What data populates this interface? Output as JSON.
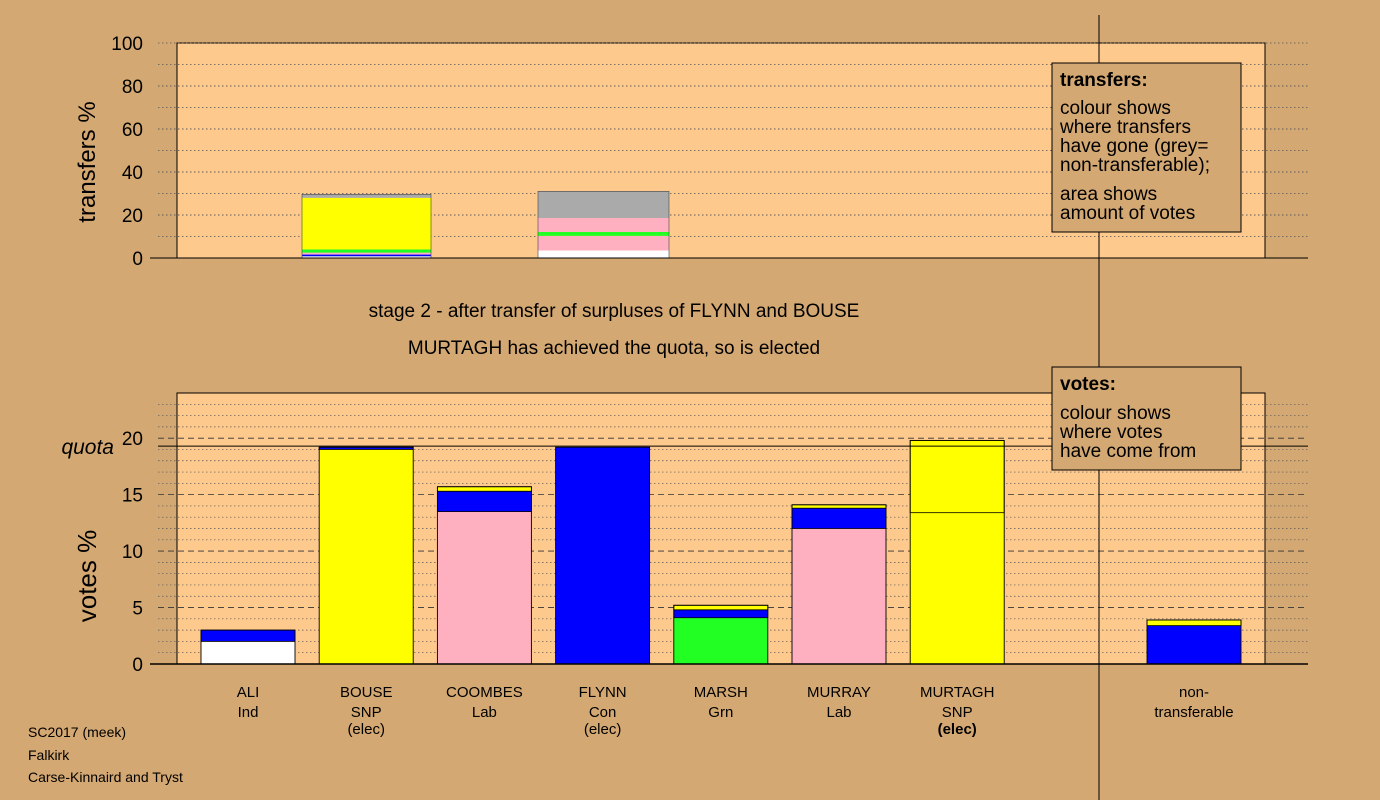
{
  "caption": {
    "stage_line": "stage 2 - after transfer of surpluses of FLYNN and BOUSE",
    "elected_line": "MURTAGH has achieved the quota, so is elected"
  },
  "footer": {
    "line1": "SC2017 (meek)",
    "line2": "Falkirk",
    "line3": "Carse-Kinnaird and Tryst"
  },
  "transfers_box": {
    "title": "transfers:",
    "lines": [
      "colour shows",
      "where transfers",
      "have gone (grey=",
      "non-transferable);",
      "area shows",
      "amount of votes"
    ]
  },
  "votes_box": {
    "title": "votes:",
    "lines": [
      "colour shows",
      "where votes",
      "have come from"
    ]
  },
  "colors": {
    "background": "#d4a872",
    "plot_area": "#fec98d",
    "Con": "#0000ff",
    "SNP": "#ffff00",
    "Lab": "#ffb0c0",
    "Grn": "#22ff22",
    "Ind": "#ffffff",
    "non_transferable": "#aaaaaa"
  },
  "chart_data": [
    {
      "type": "bar",
      "stacked": true,
      "ylabel": "transfers %",
      "ylim": [
        0,
        100
      ],
      "yticks": [
        0,
        20,
        40,
        60,
        80,
        100
      ],
      "grid": true,
      "categories": [
        "BOUSE",
        "FLYNN"
      ],
      "segments": [
        {
          "bar": "BOUSE",
          "stack": [
            {
              "color": "Ind",
              "value": 0.8
            },
            {
              "color": "Con",
              "value": 0.8
            },
            {
              "color": "Lab",
              "value": 0.9
            },
            {
              "color": "Grn",
              "value": 1.5
            },
            {
              "color": "SNP",
              "value": 24.0
            },
            {
              "color": "non_transferable",
              "value": 1.6
            }
          ]
        },
        {
          "bar": "FLYNN",
          "stack": [
            {
              "color": "Ind",
              "value": 3.5
            },
            {
              "color": "Lab",
              "value": 6.8
            },
            {
              "color": "Grn",
              "value": 1.8
            },
            {
              "color": "Lab",
              "value": 6.5
            },
            {
              "color": "non_transferable",
              "value": 12.4
            }
          ]
        }
      ]
    },
    {
      "type": "bar",
      "stacked": true,
      "ylabel": "votes %",
      "ylim": [
        0,
        24
      ],
      "yticks": [
        0,
        5,
        10,
        15,
        20
      ],
      "quota": 19.3,
      "quota_label": "quota",
      "grid": true,
      "candidates": [
        {
          "name": "ALI",
          "party": "Ind",
          "note": "",
          "stack": [
            {
              "color": "Ind",
              "value": 2.0
            },
            {
              "color": "Con",
              "value": 1.0
            }
          ]
        },
        {
          "name": "BOUSE",
          "party": "SNP",
          "note": "(elec)",
          "stack": [
            {
              "color": "SNP",
              "value": 19.0
            },
            {
              "color": "Con",
              "value": 0.2
            }
          ]
        },
        {
          "name": "COOMBES",
          "party": "Lab",
          "note": "",
          "stack": [
            {
              "color": "Lab",
              "value": 13.5
            },
            {
              "color": "Con",
              "value": 1.8
            },
            {
              "color": "SNP",
              "value": 0.4
            }
          ]
        },
        {
          "name": "FLYNN",
          "party": "Con",
          "note": "(elec)",
          "stack": [
            {
              "color": "Con",
              "value": 19.2
            }
          ]
        },
        {
          "name": "MARSH",
          "party": "Grn",
          "note": "",
          "stack": [
            {
              "color": "Grn",
              "value": 4.1
            },
            {
              "color": "Con",
              "value": 0.7
            },
            {
              "color": "SNP",
              "value": 0.4
            }
          ]
        },
        {
          "name": "MURRAY",
          "party": "Lab",
          "note": "",
          "stack": [
            {
              "color": "Lab",
              "value": 12.0
            },
            {
              "color": "Con",
              "value": 1.8
            },
            {
              "color": "SNP",
              "value": 0.3
            }
          ]
        },
        {
          "name": "MURTAGH",
          "party": "SNP",
          "note": "(elec)",
          "stack": [
            {
              "color": "SNP",
              "value": 13.4
            },
            {
              "color": "SNP",
              "value": 6.4
            }
          ]
        },
        {
          "name": "non-",
          "party": "transferable",
          "note": "",
          "stack": [
            {
              "color": "Con",
              "value": 3.4
            },
            {
              "color": "SNP",
              "value": 0.5
            }
          ]
        }
      ]
    }
  ]
}
